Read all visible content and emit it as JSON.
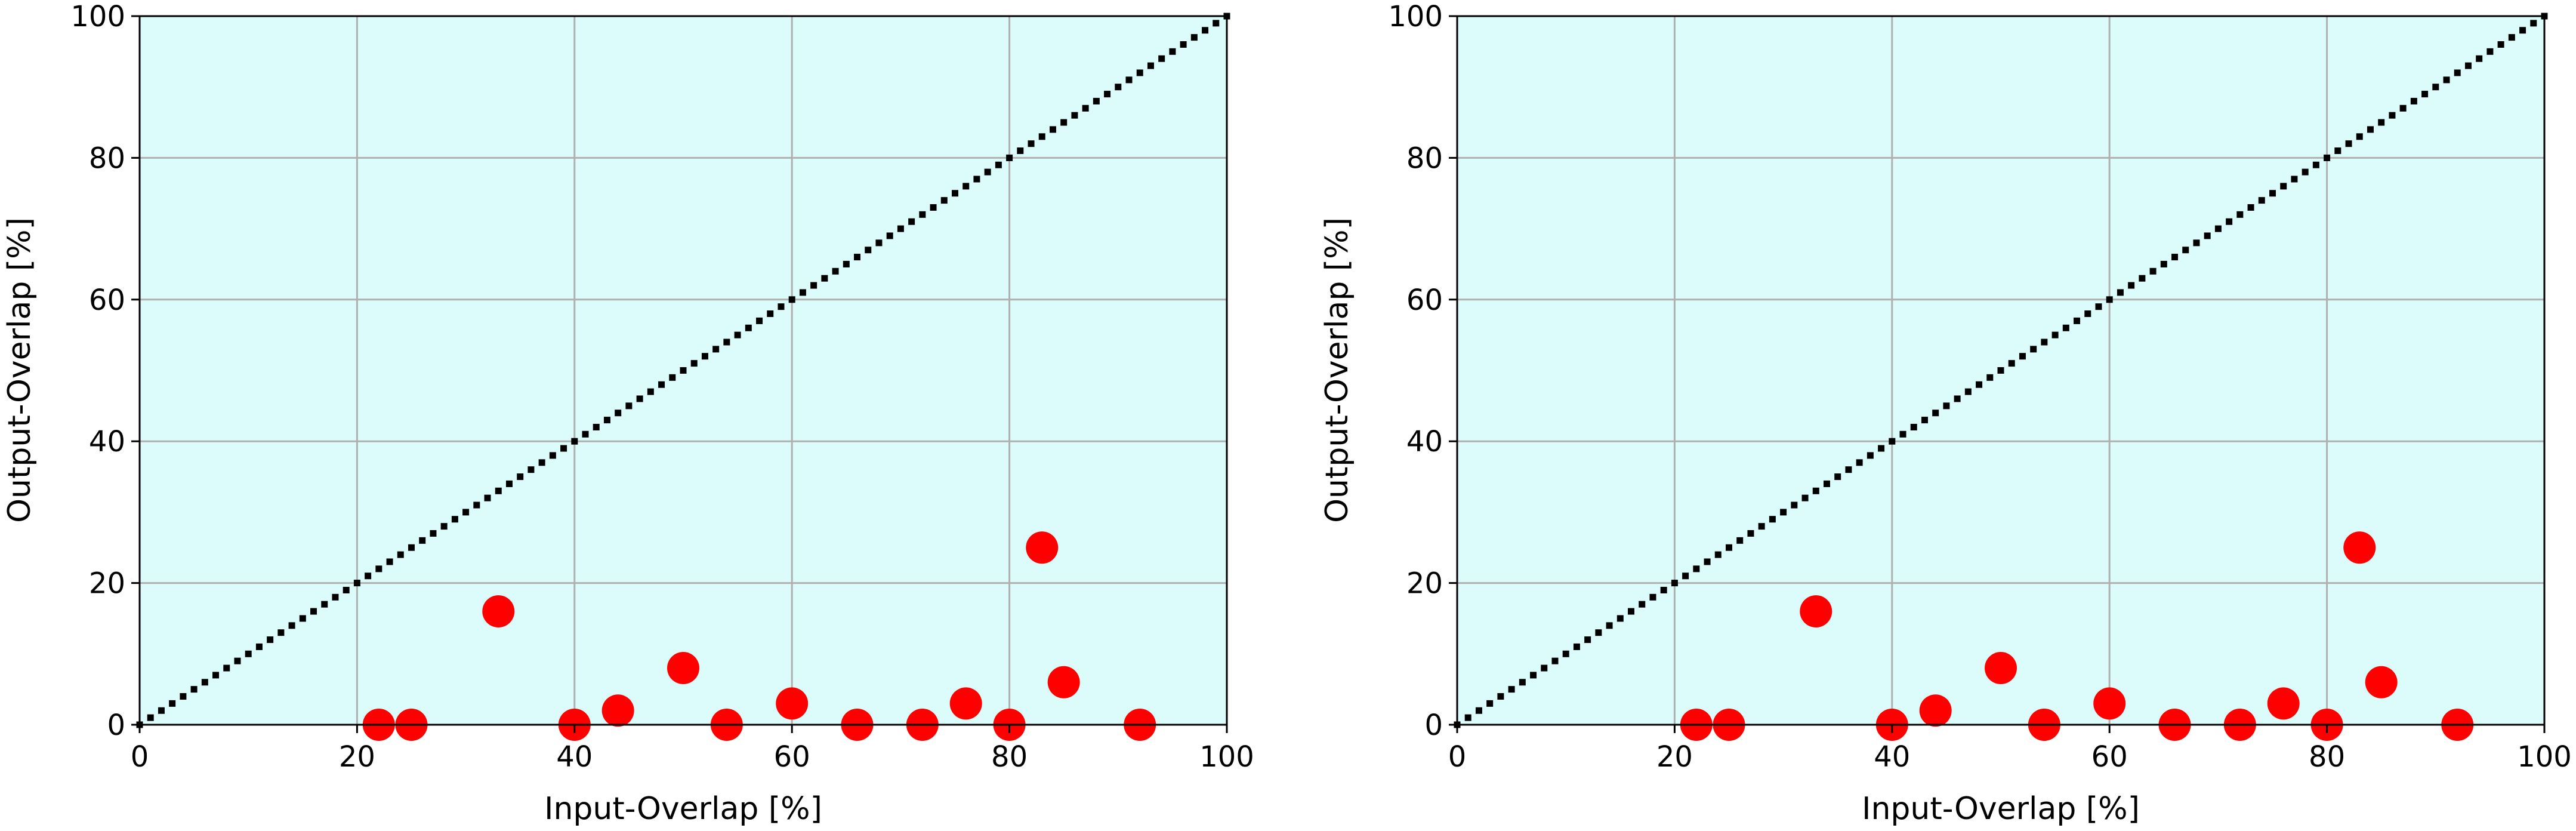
{
  "colors": {
    "plot_background": "#dcfbfb",
    "grid": "#b0b0b0",
    "identity_line": "#000000",
    "points": "#ff0000",
    "axes": "#000000"
  },
  "chart_data": [
    {
      "type": "scatter",
      "title": "",
      "xlabel": "Input-Overlap [%]",
      "ylabel": "Output-Overlap [%]",
      "xlim": [
        0,
        100
      ],
      "ylim": [
        0,
        100
      ],
      "xticks": [
        "0",
        "20",
        "40",
        "60",
        "80",
        "100"
      ],
      "yticks": [
        "0",
        "20",
        "40",
        "60",
        "80",
        "100"
      ],
      "grid": true,
      "reference_line": {
        "from": [
          0,
          0
        ],
        "to": [
          100,
          100
        ],
        "style": "dotted",
        "color": "#000000"
      },
      "series": [
        {
          "marker_color": "#ff0000",
          "points": [
            [
              22,
              0
            ],
            [
              25,
              0
            ],
            [
              33,
              16
            ],
            [
              40,
              0
            ],
            [
              44,
              2
            ],
            [
              50,
              8
            ],
            [
              54,
              0
            ],
            [
              60,
              3
            ],
            [
              66,
              0
            ],
            [
              72,
              0
            ],
            [
              76,
              3
            ],
            [
              80,
              0
            ],
            [
              83,
              25
            ],
            [
              85,
              6
            ],
            [
              92,
              0
            ]
          ]
        }
      ]
    },
    {
      "type": "scatter",
      "title": "",
      "xlabel": "Input-Overlap [%]",
      "ylabel": "Output-Overlap [%]",
      "xlim": [
        0,
        100
      ],
      "ylim": [
        0,
        100
      ],
      "xticks": [
        "0",
        "20",
        "40",
        "60",
        "80",
        "100"
      ],
      "yticks": [
        "0",
        "20",
        "40",
        "60",
        "80",
        "100"
      ],
      "grid": true,
      "reference_line": {
        "from": [
          0,
          0
        ],
        "to": [
          100,
          100
        ],
        "style": "dotted",
        "color": "#000000"
      },
      "series": [
        {
          "marker_color": "#ff0000",
          "points": [
            [
              22,
              0
            ],
            [
              25,
              0
            ],
            [
              33,
              16
            ],
            [
              40,
              0
            ],
            [
              44,
              2
            ],
            [
              50,
              8
            ],
            [
              54,
              0
            ],
            [
              60,
              3
            ],
            [
              66,
              0
            ],
            [
              72,
              0
            ],
            [
              76,
              3
            ],
            [
              80,
              0
            ],
            [
              83,
              25
            ],
            [
              85,
              6
            ],
            [
              92,
              0
            ]
          ]
        }
      ]
    }
  ]
}
